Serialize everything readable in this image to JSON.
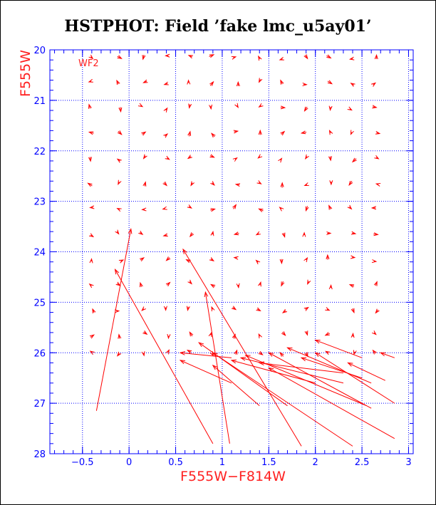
{
  "title": "HSTPHOT: Field ’fake lmc_u5ay01’",
  "chart_data": {
    "type": "quiver",
    "panel_label": "WF2",
    "xlabel": "F555W−F814W",
    "ylabel": "F555W",
    "xlim": [
      -0.85,
      3.05
    ],
    "ylim": [
      28,
      20
    ],
    "y_inverted": true,
    "x_major_ticks": [
      -0.5,
      0,
      0.5,
      1,
      1.5,
      2,
      2.5,
      3
    ],
    "x_tick_labels": [
      "−0.5",
      "0",
      "0.5",
      "1",
      "1.5",
      "2",
      "2.5",
      "3"
    ],
    "y_major_ticks": [
      20,
      21,
      22,
      23,
      24,
      25,
      26,
      27,
      28
    ],
    "y_tick_labels": [
      "20",
      "21",
      "22",
      "23",
      "24",
      "25",
      "26",
      "27",
      "28"
    ],
    "grid_x": [
      -0.5,
      0,
      0.5,
      1,
      1.5,
      2,
      2.5,
      3
    ],
    "grid_y": [
      21,
      22,
      23,
      24,
      25,
      26,
      27
    ],
    "colors": {
      "axes": "#0000ff",
      "data": "#ff0000",
      "labels": "#ff2020",
      "title": "#000000"
    },
    "small_vectors_grid": {
      "x": [
        -0.4,
        -0.1,
        0.15,
        0.4,
        0.65,
        0.9,
        1.15,
        1.4,
        1.65,
        1.9,
        2.15,
        2.4,
        2.65
      ],
      "y": [
        20.15,
        20.65,
        21.15,
        21.65,
        22.15,
        22.65,
        23.15,
        23.65,
        24.15,
        24.65,
        25.15,
        25.65,
        26.0
      ]
    },
    "vectors": [
      {
        "from": [
          -0.35,
          27.15
        ],
        "to": [
          0.02,
          23.55
        ]
      },
      {
        "from": [
          0.9,
          27.8
        ],
        "to": [
          -0.15,
          24.35
        ]
      },
      {
        "from": [
          1.08,
          27.8
        ],
        "to": [
          0.82,
          24.8
        ]
      },
      {
        "from": [
          1.85,
          27.85
        ],
        "to": [
          0.58,
          23.95
        ]
      },
      {
        "from": [
          2.4,
          27.85
        ],
        "to": [
          0.9,
          26.0
        ]
      },
      {
        "from": [
          2.85,
          27.7
        ],
        "to": [
          1.5,
          26.3
        ]
      },
      {
        "from": [
          2.85,
          27.0
        ],
        "to": [
          2.0,
          26.0
        ]
      },
      {
        "from": [
          2.75,
          26.55
        ],
        "to": [
          2.35,
          26.2
        ]
      },
      {
        "from": [
          2.5,
          26.5
        ],
        "to": [
          1.85,
          26.1
        ]
      },
      {
        "from": [
          2.6,
          27.1
        ],
        "to": [
          1.5,
          26.0
        ]
      },
      {
        "from": [
          2.55,
          27.05
        ],
        "to": [
          1.25,
          26.05
        ]
      },
      {
        "from": [
          1.7,
          27.05
        ],
        "to": [
          0.75,
          25.8
        ]
      },
      {
        "from": [
          1.4,
          27.05
        ],
        "to": [
          0.9,
          26.25
        ]
      },
      {
        "from": [
          1.1,
          26.6
        ],
        "to": [
          0.55,
          26.15
        ]
      },
      {
        "from": [
          1.1,
          26.1
        ],
        "to": [
          0.55,
          26.0
        ]
      },
      {
        "from": [
          2.3,
          26.4
        ],
        "to": [
          1.4,
          26.2
        ]
      },
      {
        "from": [
          2.6,
          26.6
        ],
        "to": [
          1.7,
          25.9
        ]
      },
      {
        "from": [
          2.3,
          26.6
        ],
        "to": [
          1.2,
          26.1
        ]
      },
      {
        "from": [
          2.0,
          26.6
        ],
        "to": [
          1.1,
          26.15
        ]
      },
      {
        "from": [
          2.5,
          26.1
        ],
        "to": [
          2.0,
          25.75
        ]
      },
      {
        "from": [
          2.85,
          26.1
        ],
        "to": [
          2.7,
          26.0
        ]
      }
    ]
  }
}
